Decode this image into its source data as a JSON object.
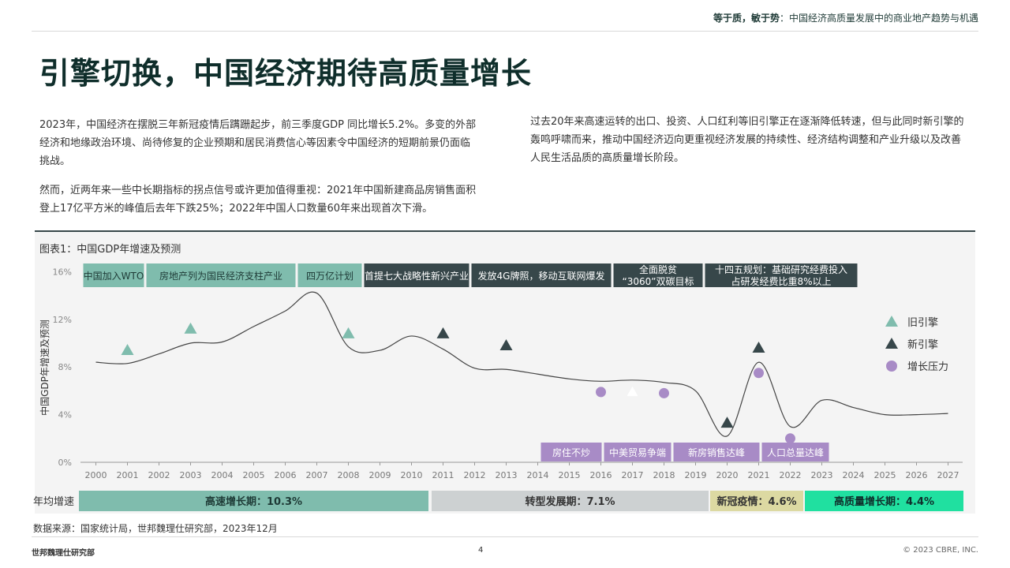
{
  "header": {
    "bold": "等于质，敏于势",
    "rest": "：中国经济高质量发展中的商业地产趋势与机遇"
  },
  "title": "引擎切换，中国经济期待高质量增长",
  "paragraphs": {
    "p1": "2023年，中国经济在摆脱三年新冠疫情后蹒跚起步，前三季度GDP 同比增长5.2%。多变的外部经济和地缘政治环境、尚待修复的企业预期和居民消费信心等因素令中国经济的短期前景仍面临挑战。",
    "p2": "然而，近两年来一些中长期指标的拐点信号或许更加值得重视：2021年中国新建商品房销售面积登上17亿平方米的峰值后去年下跌25%；2022年中国人口数量60年来出现首次下滑。",
    "p3": "过去20年来高速运转的出口、投资、人口红利等旧引擎正在逐渐降低转速，但与此同时新引擎的轰鸣呼啸而来，推动中国经济迈向更重视经济发展的持续性、经济结构调整和产业升级以及改善人民生活品质的高质量增长阶段。"
  },
  "chart_title": "图表1：中国GDP年增速及预测",
  "chart_data": {
    "type": "line",
    "ylabel": "中国GDP年增速及预测",
    "ylim": [
      0,
      16
    ],
    "y_ticks": [
      "0%",
      "4%",
      "8%",
      "12%",
      "16%"
    ],
    "x": [
      2000,
      2001,
      2002,
      2003,
      2004,
      2005,
      2006,
      2007,
      2008,
      2009,
      2010,
      2011,
      2012,
      2013,
      2014,
      2015,
      2016,
      2017,
      2018,
      2019,
      2020,
      2021,
      2022,
      2023,
      2024,
      2025,
      2026,
      2027
    ],
    "x_labels": [
      "2000",
      "2001",
      "2002",
      "2003",
      "2004",
      "2005",
      "2006",
      "2007",
      "2008",
      "2009",
      "2010",
      "2011",
      "2012",
      "2013",
      "2014",
      "2015",
      "2016",
      "2017",
      "2018",
      "2019",
      "2020",
      "2021",
      "2022",
      "2023",
      "2024",
      "2025",
      "2026",
      "2027"
    ],
    "gdp_growth": [
      8.4,
      8.3,
      9.1,
      10.0,
      10.1,
      11.4,
      12.7,
      14.2,
      9.7,
      9.4,
      10.6,
      9.5,
      7.9,
      7.8,
      7.4,
      7.0,
      6.8,
      6.9,
      6.7,
      6.0,
      2.2,
      8.4,
      3.0,
      5.2,
      4.6,
      4.0,
      4.0,
      4.1
    ],
    "legend": [
      {
        "name": "旧引擎",
        "shape": "triangle",
        "color": "#7fbcad"
      },
      {
        "name": "新引擎",
        "shape": "triangle",
        "color": "#37474a"
      },
      {
        "name": "增长压力",
        "shape": "circle",
        "color": "#a88bc6"
      }
    ],
    "markers": [
      {
        "x": 2001,
        "y": 9.4,
        "type": "old"
      },
      {
        "x": 2003,
        "y": 11.2,
        "type": "old"
      },
      {
        "x": 2008,
        "y": 10.8,
        "type": "old"
      },
      {
        "x": 2011,
        "y": 10.8,
        "type": "new"
      },
      {
        "x": 2013,
        "y": 9.8,
        "type": "new"
      },
      {
        "x": 2016,
        "y": 5.9,
        "type": "pressure"
      },
      {
        "x": 2017,
        "y": 5.9,
        "type": "white"
      },
      {
        "x": 2018,
        "y": 5.8,
        "type": "pressure"
      },
      {
        "x": 2020,
        "y": 3.3,
        "type": "new"
      },
      {
        "x": 2021,
        "y": 9.6,
        "type": "new"
      },
      {
        "x": 2021,
        "y": 7.5,
        "type": "pressure"
      },
      {
        "x": 2022,
        "y": 2.0,
        "type": "pressure"
      }
    ],
    "top_events": [
      {
        "lines": [
          "中国加入WTO"
        ],
        "from": 2000,
        "to": 2002,
        "style": "old"
      },
      {
        "lines": [
          "房地产列为国民经济支柱产业"
        ],
        "from": 2002,
        "to": 2006.8,
        "style": "old"
      },
      {
        "lines": [
          "四万亿计划"
        ],
        "from": 2006.8,
        "to": 2008.9,
        "style": "old"
      },
      {
        "lines": [
          "首提七大战略性新兴产业"
        ],
        "from": 2008.9,
        "to": 2012.3,
        "style": "new"
      },
      {
        "lines": [
          "发放4G牌照，移动互联网爆发"
        ],
        "from": 2012.3,
        "to": 2016.8,
        "style": "new"
      },
      {
        "lines": [
          "全面脱贫",
          "“3060”双碳目标"
        ],
        "from": 2016.8,
        "to": 2019.7,
        "style": "new"
      },
      {
        "lines": [
          "十四五规划：基础研究经费投入",
          "占研发经费比重8%以上"
        ],
        "from": 2019.7,
        "to": 2024.6,
        "style": "new"
      }
    ],
    "bottom_events": [
      {
        "label": "房住不炒",
        "from": 2014.5,
        "to": 2016.5
      },
      {
        "label": "中美贸易争端",
        "from": 2016.5,
        "to": 2018.7
      },
      {
        "label": "新房销售达峰",
        "from": 2018.7,
        "to": 2021.5
      },
      {
        "label": "人口总量达峰",
        "from": 2021.5,
        "to": 2023.7
      }
    ],
    "periods_label": "年均增速",
    "periods": [
      {
        "label": "高速增长期：10.3%",
        "color": "#7fbcad",
        "text": "#1e3a36"
      },
      {
        "label": "转型发展期：7.1%",
        "color": "#cdd1d2",
        "text": "#333333"
      },
      {
        "label": "新冠疫情：4.6%",
        "color": "#dcd9a2",
        "text": "#333333"
      },
      {
        "label": "高质量增长期：4.4%",
        "color": "#20e0a0",
        "text": "#0f2e2b"
      }
    ]
  },
  "source": "数据来源：国家统计局，世邦魏理仕研究部，2023年12月",
  "footer": {
    "left": "世邦魏理仕研究部",
    "page": "4",
    "right": "© 2023 CBRE, INC."
  }
}
